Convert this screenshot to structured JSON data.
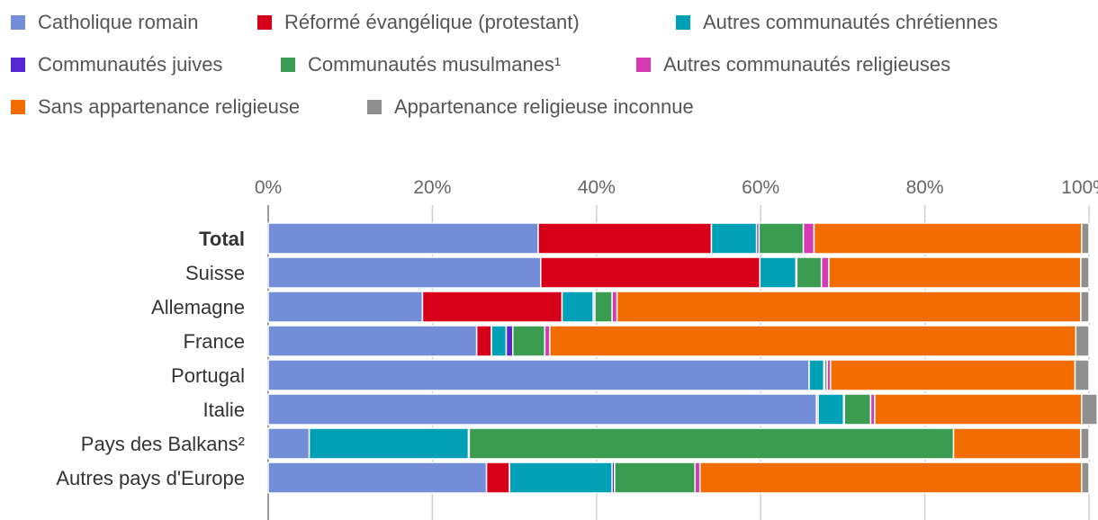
{
  "chart_data": {
    "type": "bar",
    "orientation": "horizontal",
    "stacked": true,
    "categories": [
      "Total",
      "Suisse",
      "Allemagne",
      "France",
      "Portugal",
      "Italie",
      "Pays des Balkans²",
      "Autres pays d'Europe"
    ],
    "xlim": [
      0,
      100
    ],
    "x_ticks": [
      "0%",
      "20%",
      "40%",
      "60%",
      "80%",
      "100%"
    ],
    "grid": true,
    "legend_position": "top",
    "series": [
      {
        "name": "Catholique romain",
        "color": "#748dd9",
        "values": [
          32.9,
          33.2,
          18.8,
          25.4,
          65.9,
          66.8,
          5.0,
          26.6
        ]
      },
      {
        "name": "Réformé évangélique (protestant)",
        "color": "#d7001b",
        "values": [
          21.1,
          26.7,
          17.0,
          1.8,
          0.0,
          0.2,
          0.0,
          2.8
        ]
      },
      {
        "name": "Autres communautés chrétiennes",
        "color": "#00a1b6",
        "values": [
          5.5,
          4.4,
          3.8,
          1.8,
          1.8,
          3.1,
          19.4,
          12.5
        ]
      },
      {
        "name": "Communautés juives",
        "color": "#5426d4",
        "values": [
          0.3,
          0.1,
          0.2,
          0.8,
          0.1,
          0.1,
          0.1,
          0.3
        ]
      },
      {
        "name": "Communautés musulmanes¹",
        "color": "#3a9c50",
        "values": [
          5.4,
          3.0,
          2.1,
          3.9,
          0.3,
          3.2,
          59.0,
          9.8
        ]
      },
      {
        "name": "Autres communautés religieuses",
        "color": "#d43bb2",
        "values": [
          1.3,
          0.9,
          0.6,
          0.6,
          0.4,
          0.5,
          0.0,
          0.6
        ]
      },
      {
        "name": "Sans appartenance religieuse",
        "color": "#f36c00",
        "values": [
          32.6,
          30.7,
          56.5,
          64.1,
          29.8,
          25.2,
          15.5,
          46.5
        ]
      },
      {
        "name": "Appartenance religieuse inconnue",
        "color": "#8f8f8f",
        "values": [
          0.9,
          1.0,
          1.0,
          1.6,
          1.7,
          1.9,
          1.0,
          0.9
        ]
      }
    ]
  }
}
